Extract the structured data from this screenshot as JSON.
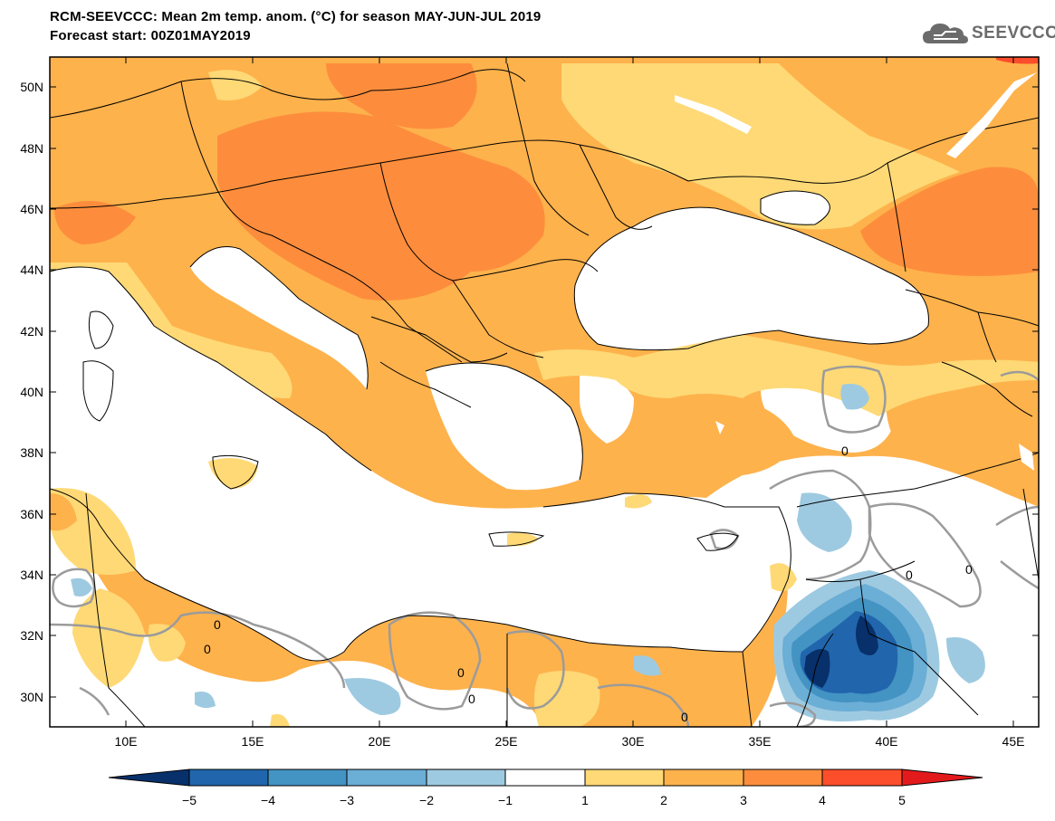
{
  "header": {
    "title": "RCM-SEEVCCC: Mean 2m temp. anom. (°C) for season MAY-JUN-JUL 2019",
    "subtitle": "Forecast start: 00Z01MAY2019"
  },
  "logo": {
    "text": "SEEVCCC",
    "icon": "cloud-icon"
  },
  "map": {
    "lat_labels": [
      "50N",
      "48N",
      "46N",
      "44N",
      "42N",
      "40N",
      "38N",
      "36N",
      "34N",
      "32N",
      "30N"
    ],
    "lon_labels": [
      "10E",
      "15E",
      "20E",
      "25E",
      "30E",
      "35E",
      "40E",
      "45E"
    ],
    "contour_label": "0",
    "extent": {
      "lon": [
        7,
        46
      ],
      "lat": [
        29,
        51
      ]
    }
  },
  "colorbar": {
    "labels": [
      "−5",
      "−4",
      "−3",
      "−2",
      "−1",
      "1",
      "2",
      "3",
      "4",
      "5"
    ],
    "colors": [
      "#08306b",
      "#2166ac",
      "#4393c3",
      "#6baed6",
      "#9ecae1",
      "#ffffff",
      "#fed976",
      "#feb24c",
      "#fd8d3c",
      "#fc4e2a",
      "#e31a1c"
    ]
  },
  "colors": {
    "anom_1_2": "#fed976",
    "anom_2_3": "#feb24c",
    "anom_3_4": "#fd8d3c",
    "anom_neg_1_2": "#9ecae1",
    "anom_neg_2_3": "#6baed6",
    "anom_neg_3_4": "#4393c3",
    "anom_neg_4_5": "#2166ac",
    "anom_neg_5": "#08306b",
    "zero_contour": "#9b9b9b"
  }
}
